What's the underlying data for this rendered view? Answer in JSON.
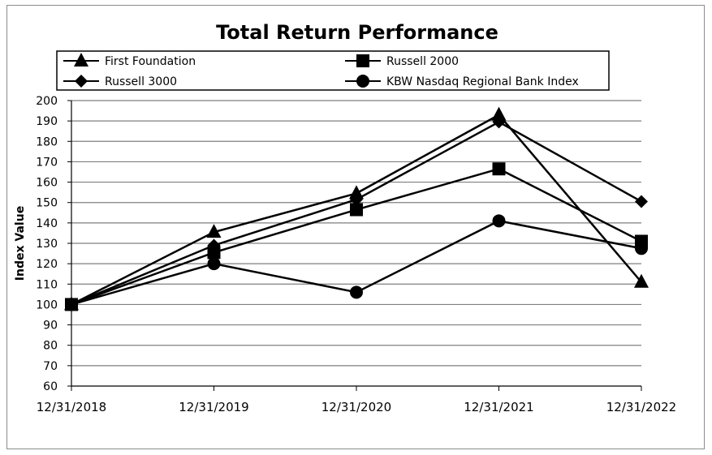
{
  "chart_data": {
    "type": "line",
    "title": "Total Return Performance",
    "xlabel": "",
    "ylabel": "Index Value",
    "ylim": [
      60,
      200
    ],
    "ytick_step": 10,
    "grid": true,
    "legend_position": "top",
    "categories": [
      "12/31/2018",
      "12/31/2019",
      "12/31/2020",
      "12/31/2021",
      "12/31/2022"
    ],
    "series": [
      {
        "name": "First Foundation",
        "marker": "triangle",
        "values": [
          100,
          135.5,
          154.5,
          193,
          111
        ]
      },
      {
        "name": "Russell 2000",
        "marker": "square",
        "values": [
          100,
          125.5,
          146.5,
          166.5,
          131
        ]
      },
      {
        "name": "Russell 3000",
        "marker": "diamond",
        "values": [
          100,
          129,
          151.5,
          189.5,
          150.5
        ]
      },
      {
        "name": "KBW Nasdaq Regional Bank Index",
        "marker": "circle",
        "values": [
          100,
          120,
          106,
          141,
          127.5
        ]
      }
    ],
    "line_color": "#000000",
    "grid_color": "#7f7f7f"
  }
}
